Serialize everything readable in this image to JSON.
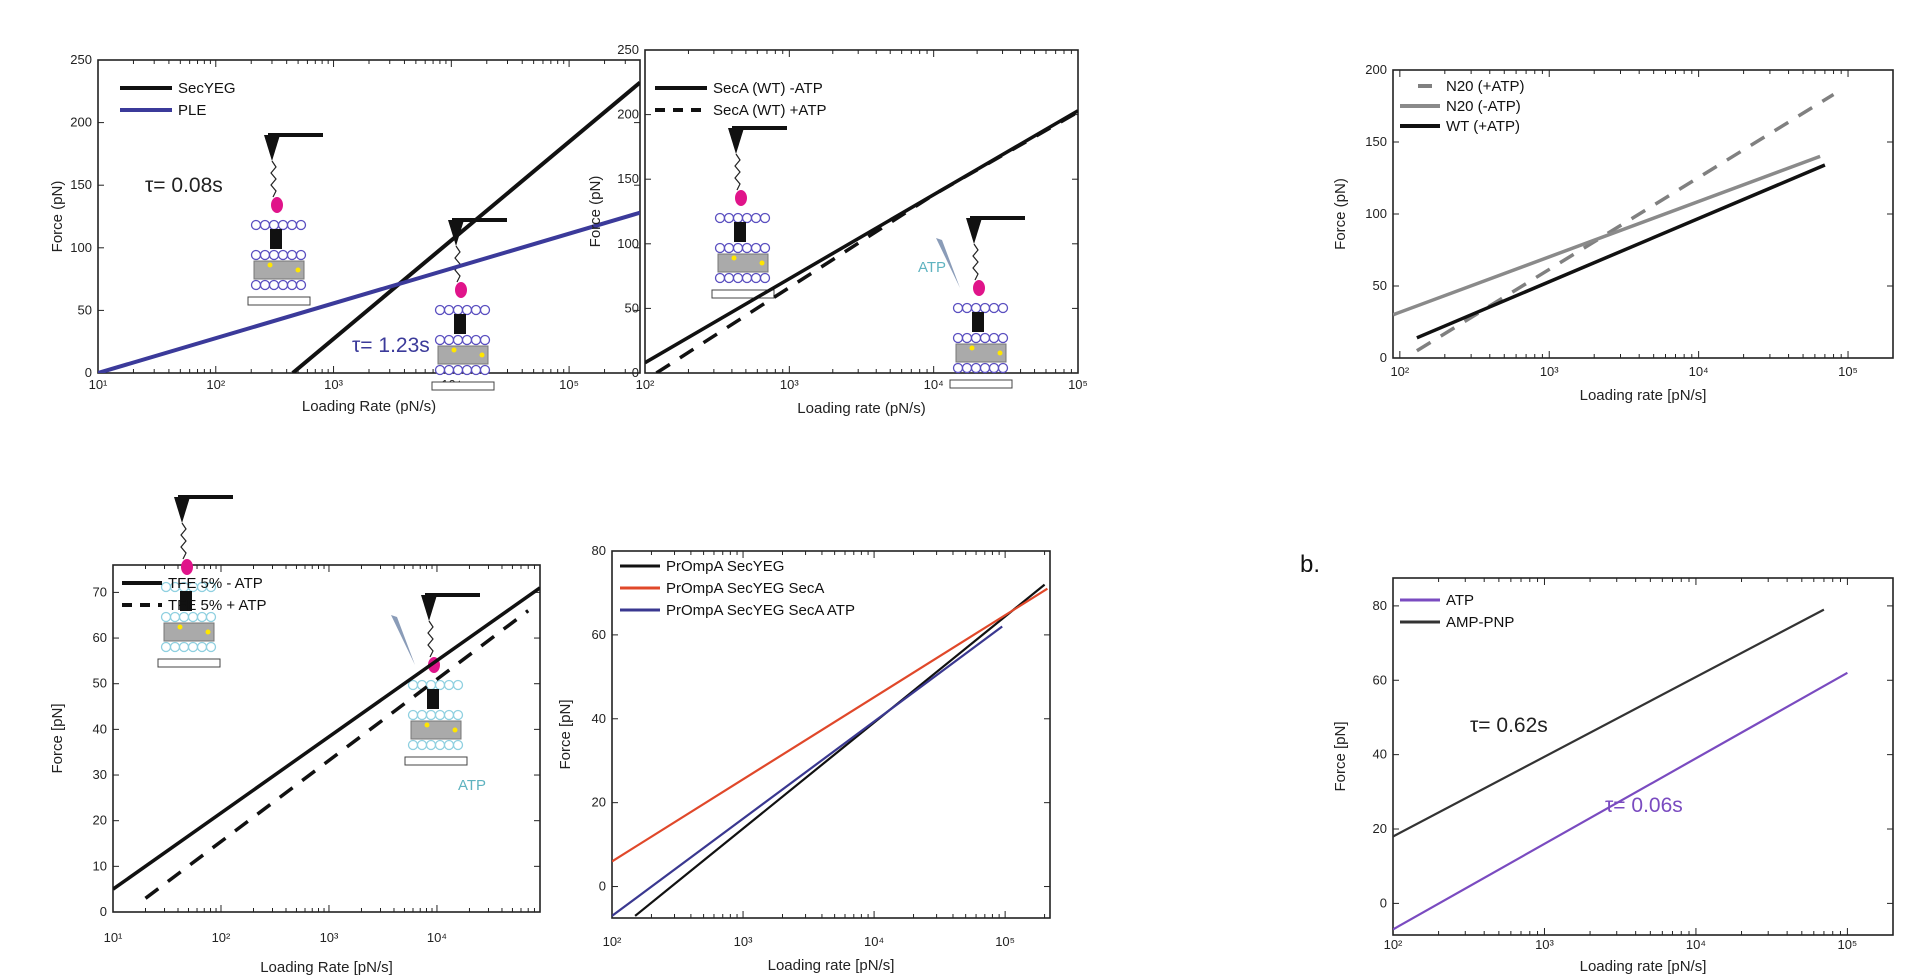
{
  "chart_data": [
    {
      "type": "line",
      "xscale": "log",
      "xlabel": "Loading Rate (pN/s)",
      "ylabel": "Force (pN)",
      "xlim": [
        10,
        400000
      ],
      "ylim": [
        0,
        250
      ],
      "yticks": [
        0,
        50,
        100,
        150,
        200,
        250
      ],
      "xticks": [
        {
          "value": 10,
          "label": "10¹"
        },
        {
          "value": 100,
          "label": "10²"
        },
        {
          "value": 1000,
          "label": "10³"
        },
        {
          "value": 10000,
          "label": "10⁴"
        },
        {
          "value": 100000,
          "label": "10⁵"
        }
      ],
      "legend_placement": "top-left",
      "series": [
        {
          "name": "SecYEG",
          "color": "#111111",
          "dash": "solid",
          "x": [
            450,
            400000
          ],
          "y": [
            0,
            232
          ]
        },
        {
          "name": "PLE",
          "color": "#3b3a9a",
          "dash": "solid",
          "x": [
            10,
            400000
          ],
          "y": [
            0,
            128
          ]
        }
      ],
      "annotations": [
        {
          "text": "τ= 0.08s",
          "color": "#222222"
        },
        {
          "text": "τ= 1.23s",
          "color": "#3b3a9a"
        }
      ],
      "cartoons": [
        {
          "membrane_color": "#5a4fc0",
          "atp": false
        },
        {
          "membrane_color": "#5a4fc0",
          "atp": false
        }
      ]
    },
    {
      "type": "line",
      "xscale": "log",
      "xlabel": "Loading rate (pN/s)",
      "ylabel": "Force (pN)",
      "xlim": [
        100,
        100000
      ],
      "ylim": [
        0,
        250
      ],
      "yticks": [
        0,
        50,
        100,
        150,
        200,
        250
      ],
      "xticks": [
        {
          "value": 100,
          "label": "10²"
        },
        {
          "value": 1000,
          "label": "10³"
        },
        {
          "value": 10000,
          "label": "10⁴"
        },
        {
          "value": 100000,
          "label": "10⁵"
        }
      ],
      "legend_placement": "top-left",
      "series": [
        {
          "name": "SecA (WT)  -ATP",
          "color": "#111111",
          "dash": "solid",
          "x": [
            100,
            100000
          ],
          "y": [
            8,
            203
          ]
        },
        {
          "name": "SecA (WT) +ATP",
          "color": "#111111",
          "dash": "dashed",
          "x": [
            120,
            10000,
            100000
          ],
          "y": [
            0,
            138,
            202
          ]
        }
      ],
      "annotations": [
        {
          "text": "ATP",
          "color": "#5fb3c0"
        }
      ],
      "cartoons": [
        {
          "membrane_color": "#5a4fc0",
          "atp": false
        },
        {
          "membrane_color": "#5a4fc0",
          "atp": true
        }
      ]
    },
    {
      "type": "line",
      "xscale": "log",
      "xlabel": "Loading rate [pN/s]",
      "ylabel": "Force (pN)",
      "xlim": [
        90,
        200000
      ],
      "ylim": [
        0,
        200
      ],
      "yticks": [
        0,
        50,
        100,
        150,
        200
      ],
      "xticks": [
        {
          "value": 100,
          "label": "10²"
        },
        {
          "value": 1000,
          "label": "10³"
        },
        {
          "value": 10000,
          "label": "10⁴"
        },
        {
          "value": 100000,
          "label": "10⁵"
        }
      ],
      "legend_placement": "top-left",
      "series": [
        {
          "name": "N20 (+ATP)",
          "color": "#808080",
          "dash": "dashed",
          "x": [
            130,
            80000
          ],
          "y": [
            5,
            183
          ]
        },
        {
          "name": "N20 (-ATP)",
          "color": "#8a8a8a",
          "dash": "solid",
          "x": [
            90,
            65000
          ],
          "y": [
            30,
            140
          ]
        },
        {
          "name": "WT  (+ATP)",
          "color": "#111111",
          "dash": "solid",
          "x": [
            130,
            70000
          ],
          "y": [
            14,
            134
          ]
        }
      ],
      "annotations": [],
      "cartoons": []
    },
    {
      "type": "line",
      "xscale": "log",
      "xlabel": "Loading Rate [pN/s]",
      "ylabel": "Force [pN]",
      "xlim": [
        10,
        90000
      ],
      "ylim": [
        0,
        76
      ],
      "yticks": [
        0,
        10,
        20,
        30,
        40,
        50,
        60,
        70
      ],
      "xticks": [
        {
          "value": 10,
          "label": "10¹"
        },
        {
          "value": 100,
          "label": "10²"
        },
        {
          "value": 1000,
          "label": "10³"
        },
        {
          "value": 10000,
          "label": "10⁴"
        }
      ],
      "legend_placement": "top-left",
      "series": [
        {
          "name": "TFE 5% - ATP",
          "color": "#111111",
          "dash": "solid",
          "x": [
            10,
            90000
          ],
          "y": [
            5,
            71
          ]
        },
        {
          "name": "TFE 5% + ATP",
          "color": "#111111",
          "dash": "dashed",
          "x": [
            20,
            70000
          ],
          "y": [
            3,
            66
          ]
        }
      ],
      "annotations": [
        {
          "text": "ATP",
          "color": "#5fb3c0"
        }
      ],
      "cartoons": [
        {
          "membrane_color": "#8fd0e0",
          "atp": false
        },
        {
          "membrane_color": "#8fd0e0",
          "atp": true
        }
      ]
    },
    {
      "type": "line",
      "xscale": "log",
      "xlabel": "Loading rate [pN/s]",
      "ylabel": "Force [pN]",
      "xlim": [
        100,
        220000
      ],
      "ylim": [
        -7.5,
        80
      ],
      "yticks": [
        0,
        20,
        40,
        60,
        80
      ],
      "xticks": [
        {
          "value": 100,
          "label": "10²"
        },
        {
          "value": 1000,
          "label": "10³"
        },
        {
          "value": 10000,
          "label": "10⁴"
        },
        {
          "value": 100000,
          "label": "10⁵"
        }
      ],
      "legend_placement": "top-left",
      "series": [
        {
          "name": "PrOmpA SecYEG",
          "color": "#111111",
          "dash": "solid",
          "x": [
            150,
            200000
          ],
          "y": [
            -7,
            72
          ]
        },
        {
          "name": "PrOmpA SecYEG SecA",
          "color": "#e0482a",
          "dash": "solid",
          "x": [
            100,
            210000
          ],
          "y": [
            6,
            71
          ]
        },
        {
          "name": "PrOmpA SecYEG SecA ATP",
          "color": "#3a3890",
          "dash": "solid",
          "x": [
            100,
            95000
          ],
          "y": [
            -7,
            62
          ]
        }
      ],
      "annotations": [],
      "cartoons": []
    },
    {
      "type": "line",
      "xscale": "log",
      "panel_label": "b.",
      "xlabel": "Loading rate [pN/s]",
      "ylabel": "Force [pN]",
      "xlim": [
        100,
        200000
      ],
      "ylim": [
        -8.5,
        87.5
      ],
      "yticks": [
        0,
        20,
        40,
        60,
        80
      ],
      "xticks": [
        {
          "value": 100,
          "label": "10²"
        },
        {
          "value": 1000,
          "label": "10³"
        },
        {
          "value": 10000,
          "label": "10⁴"
        },
        {
          "value": 100000,
          "label": "10⁵"
        }
      ],
      "legend_placement": "top-left",
      "series": [
        {
          "name": "ATP",
          "color": "#7a4bc0",
          "dash": "solid",
          "x": [
            100,
            100000
          ],
          "y": [
            -7,
            62
          ]
        },
        {
          "name": "AMP-PNP",
          "color": "#333333",
          "dash": "solid",
          "x": [
            100,
            70000
          ],
          "y": [
            18,
            79
          ]
        }
      ],
      "annotations": [
        {
          "text": "τ= 0.62s",
          "color": "#222222"
        },
        {
          "text": "τ= 0.06s",
          "color": "#7a4bc0"
        }
      ],
      "cartoons": []
    }
  ]
}
